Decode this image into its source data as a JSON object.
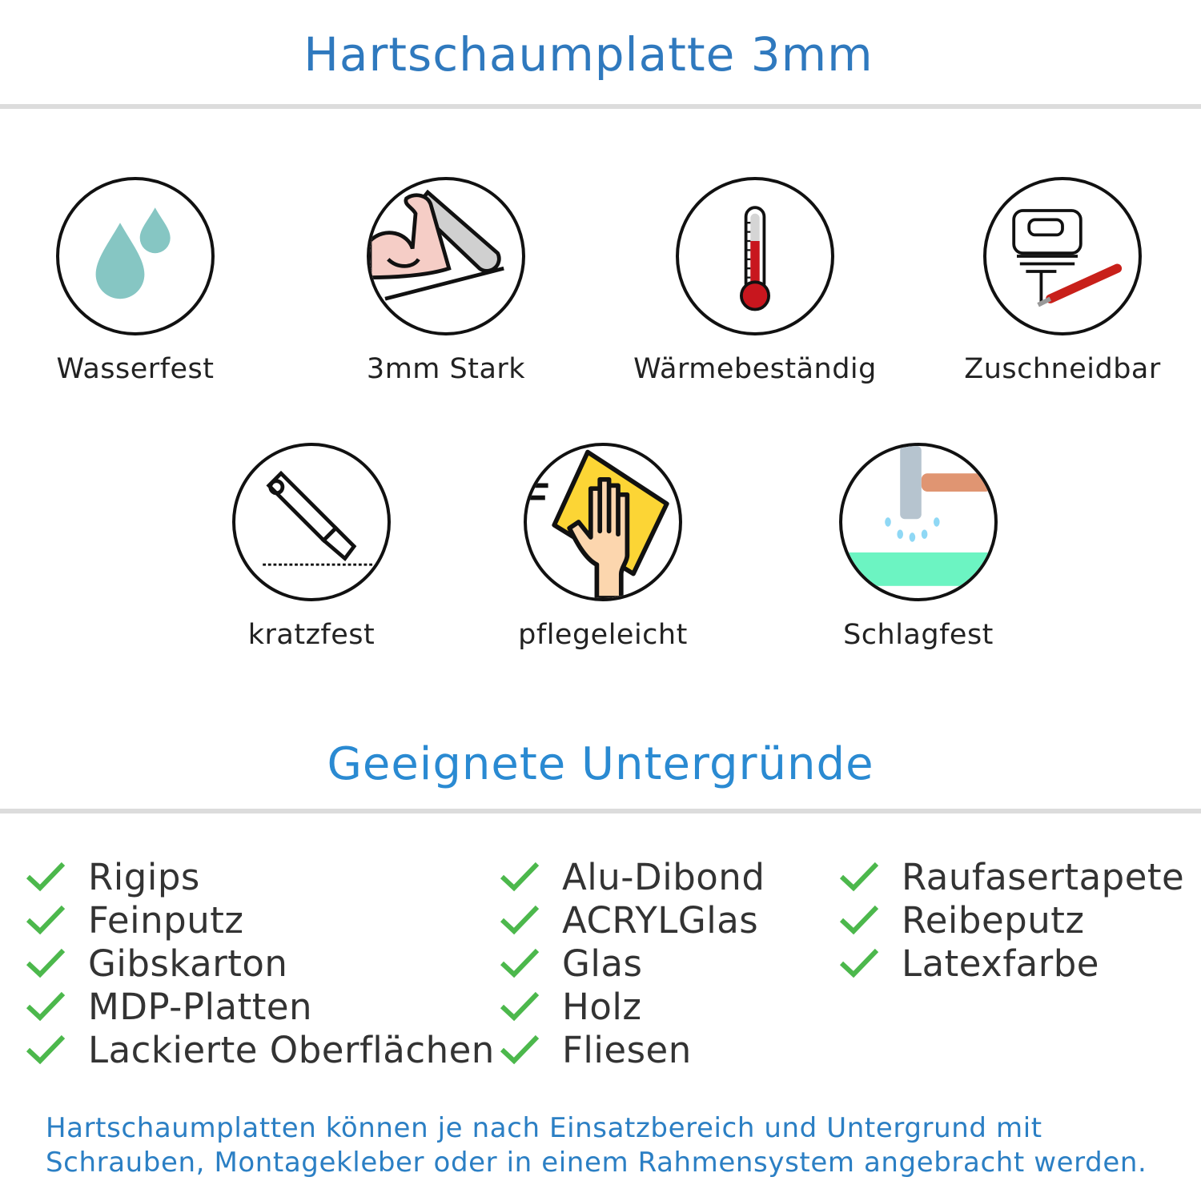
{
  "title": "Hartschaumplatte 3mm",
  "features": [
    {
      "label": "Wasserfest",
      "icon": "water-drops-icon"
    },
    {
      "label": "3mm Stark",
      "icon": "strong-arm-icon"
    },
    {
      "label": "Wärmebeständig",
      "icon": "thermometer-icon"
    },
    {
      "label": "Zuschneidbar",
      "icon": "jigsaw-cutter-icon"
    },
    {
      "label": "kratzfest",
      "icon": "cutter-knife-icon"
    },
    {
      "label": "pflegeleicht",
      "icon": "hand-cloth-icon"
    },
    {
      "label": "Schlagfest",
      "icon": "hammer-icon"
    }
  ],
  "surfaces_title": "Geeignete Untergründe",
  "surfaces": {
    "col1": [
      "Rigips",
      "Feinputz",
      "Gibskarton",
      "MDP-Platten",
      "Lackierte Oberflächen"
    ],
    "col2": [
      "Alu-Dibond",
      "ACRYLGlas",
      "Glas",
      "Holz",
      "Fliesen"
    ],
    "col3": [
      "Raufasertapete",
      "Reibeputz",
      "Latexfarbe"
    ]
  },
  "footer": {
    "line1": "Hartschaumplatten können je nach Einsatzbereich und Untergrund mit",
    "line2": "Schrauben, Montagekleber oder in einem Rahmensystem angebracht werden."
  },
  "colors": {
    "title": "#2f79be",
    "heading": "#2a8ad2",
    "check": "#4cb84c",
    "footer": "#2b7fc4"
  }
}
